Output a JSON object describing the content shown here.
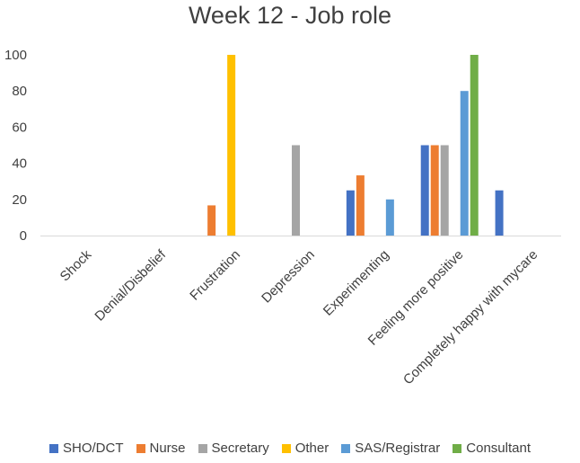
{
  "chart_data": {
    "type": "bar",
    "title": "Week 12 - Job role",
    "categories": [
      "Shock",
      "Denial/Disbelief",
      "Frustration",
      "Depression",
      "Experimenting",
      "Feeling more positive",
      "Completely happy with mycare"
    ],
    "yticks": [
      "0",
      "20",
      "40",
      "60",
      "80",
      "100"
    ],
    "ylim": [
      0,
      100
    ],
    "grid": false,
    "legend_position": "bottom",
    "series": [
      {
        "name": "SHO/DCT",
        "color": "#4472C4",
        "values": [
          0,
          0,
          0,
          0,
          25,
          50,
          25
        ]
      },
      {
        "name": "Nurse",
        "color": "#ED7D31",
        "values": [
          0,
          0,
          16.7,
          0,
          33.3,
          50,
          0
        ]
      },
      {
        "name": "Secretary",
        "color": "#A5A5A5",
        "values": [
          0,
          0,
          0,
          50,
          0,
          50,
          0
        ]
      },
      {
        "name": "Other",
        "color": "#FFC000",
        "values": [
          0,
          0,
          100,
          0,
          0,
          0,
          0
        ]
      },
      {
        "name": "SAS/Registrar",
        "color": "#5B9BD5",
        "values": [
          0,
          0,
          0,
          0,
          20,
          80,
          0
        ]
      },
      {
        "name": "Consultant",
        "color": "#70AD47",
        "values": [
          0,
          0,
          0,
          0,
          0,
          100,
          0
        ]
      }
    ]
  }
}
